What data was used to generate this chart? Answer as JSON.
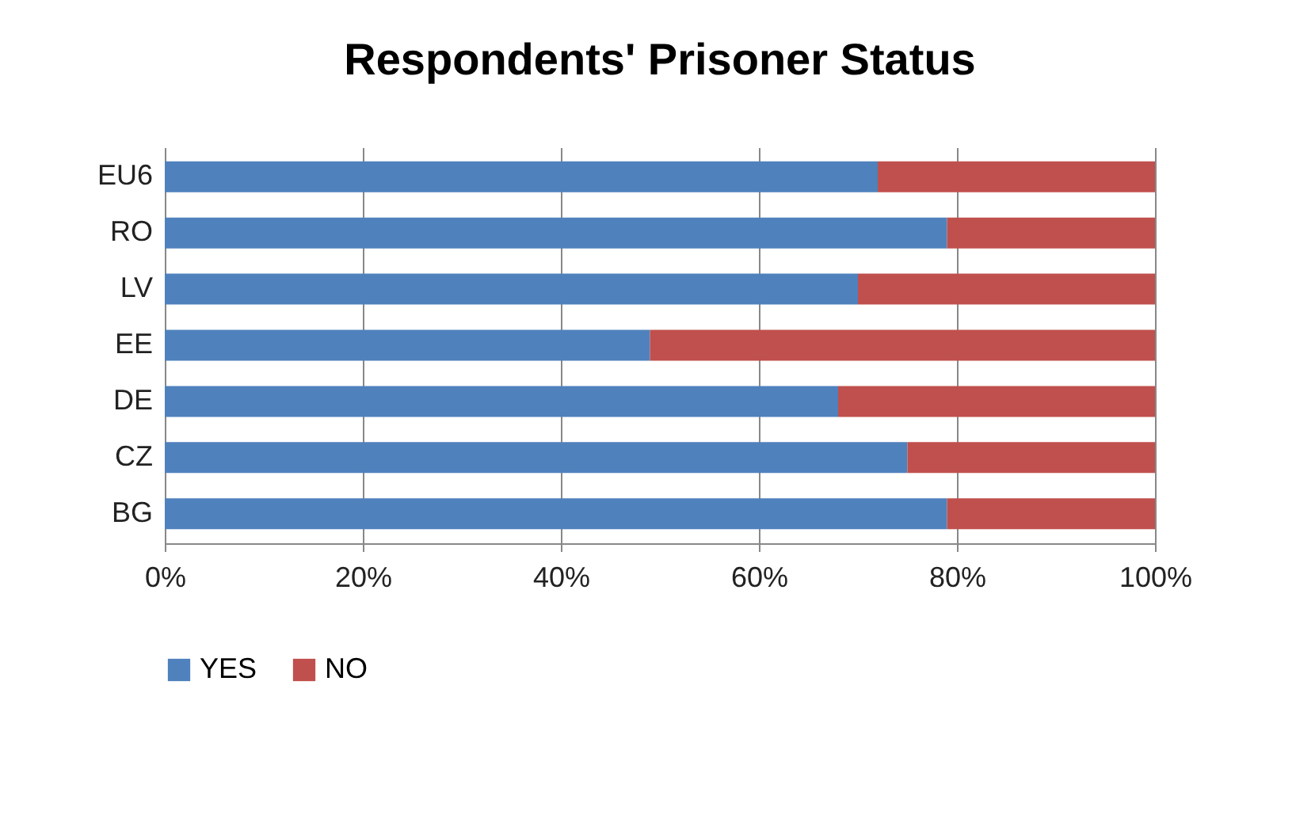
{
  "chart_data": {
    "type": "bar",
    "orientation": "horizontal",
    "stacked": true,
    "title": "Respondents' Prisoner Status",
    "categories": [
      "EU6",
      "RO",
      "LV",
      "EE",
      "DE",
      "CZ",
      "BG"
    ],
    "series": [
      {
        "name": "YES",
        "color": "#4f81bd",
        "values": [
          72,
          79,
          70,
          49,
          68,
          75,
          79
        ]
      },
      {
        "name": "NO",
        "color": "#c0504d",
        "values": [
          28,
          21,
          30,
          51,
          32,
          25,
          21
        ]
      }
    ],
    "xlim": [
      0,
      100
    ],
    "xticks": [
      {
        "value": 0,
        "label": "0%"
      },
      {
        "value": 20,
        "label": "20%"
      },
      {
        "value": 40,
        "label": "40%"
      },
      {
        "value": 60,
        "label": "60%"
      },
      {
        "value": 80,
        "label": "80%"
      },
      {
        "value": 100,
        "label": "100%"
      }
    ],
    "grid": "x",
    "legend": "bottom"
  }
}
